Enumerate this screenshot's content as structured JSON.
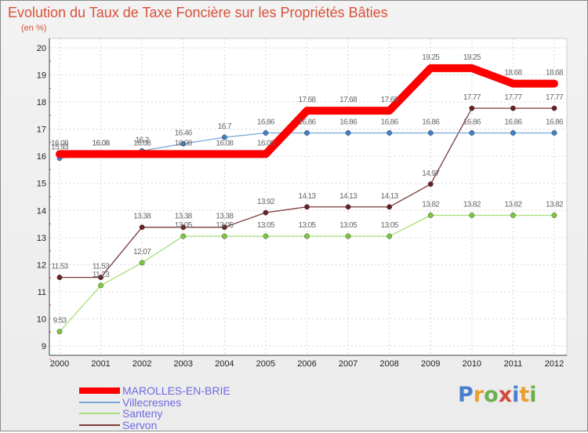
{
  "title": "Evolution du Taux de Taxe Foncière sur les Propriétés Bâties",
  "unit_label": "(en %)",
  "chart_data": {
    "type": "line",
    "title": "Evolution du Taux de Taxe Foncière sur les Propriétés Bâties",
    "ylabel": "(en %)",
    "xlabel": "",
    "x": [
      "2000",
      "2001",
      "2002",
      "2003",
      "2004",
      "2005",
      "2006",
      "2007",
      "2008",
      "2009",
      "2010",
      "2011",
      "2012"
    ],
    "ylim": [
      9,
      20
    ],
    "yticks": [
      "9",
      "10",
      "11",
      "12",
      "13",
      "14",
      "15",
      "16",
      "17",
      "18",
      "19",
      "20"
    ],
    "grid": true,
    "legend_position": "bottom-left",
    "series": [
      {
        "name": "MAROLLES-EN-BRIE",
        "color": "#ff0000",
        "point_color": "#e00000",
        "values": [
          16.08,
          16.08,
          16.08,
          16.08,
          16.08,
          16.08,
          17.68,
          17.68,
          17.68,
          19.25,
          19.25,
          18.68,
          18.68
        ]
      },
      {
        "name": "Villecresnes",
        "color": "#7aa6d6",
        "point_color": "#3d7fc8",
        "values": [
          15.93,
          16.08,
          16.2,
          16.46,
          16.7,
          16.86,
          16.86,
          16.86,
          16.86,
          16.86,
          16.86,
          16.86,
          16.86
        ]
      },
      {
        "name": "Santeny",
        "color": "#a6e07a",
        "point_color": "#7cc83c",
        "values": [
          9.53,
          11.23,
          12.07,
          13.05,
          13.05,
          13.05,
          13.05,
          13.05,
          13.05,
          13.82,
          13.82,
          13.82,
          13.82
        ]
      },
      {
        "name": "Servon",
        "color": "#7a3a3a",
        "point_color": "#6a2020",
        "values": [
          11.53,
          11.53,
          13.38,
          13.38,
          13.38,
          13.92,
          14.13,
          14.13,
          14.13,
          14.97,
          17.77,
          17.77,
          17.77
        ]
      }
    ],
    "data_labels": [
      [
        "16.08",
        "16.08",
        "16.08",
        "16.08",
        "16.08",
        "16.08",
        "17.68",
        "17.68",
        "17.68",
        "19.25",
        "19.25",
        "18.68",
        "18.68"
      ],
      [
        "15.93",
        "16.08",
        "16.2",
        "16.46",
        "16.7",
        "16.86",
        "16.86",
        "16.86",
        "16.86",
        "16.86",
        "16.86",
        "16.86",
        "16.86"
      ],
      [
        "9.53",
        "11.23",
        "12.07",
        "13.05",
        "13.05",
        "13.05",
        "13.05",
        "13.05",
        "13.05",
        "13.82",
        "13.82",
        "13.82",
        "13.82"
      ],
      [
        "11.53",
        "11.53",
        "13.38",
        "13.38",
        "13.38",
        "13.92",
        "14.13",
        "14.13",
        "14.13",
        "14.97",
        "17.77",
        "17.77",
        "17.77"
      ]
    ]
  },
  "legend": [
    {
      "label": "MAROLLES-EN-BRIE"
    },
    {
      "label": "Villecresnes"
    },
    {
      "label": "Santeny"
    },
    {
      "label": "Servon"
    }
  ],
  "logo": {
    "letters": [
      "P",
      "r",
      "o",
      "x",
      "i",
      "t",
      "i"
    ],
    "colors": [
      "#4a7fd0",
      "#e8a030",
      "#6ab04c",
      "#d04a3a",
      "#4a7fd0",
      "#e8a030",
      "#6ab04c"
    ]
  }
}
